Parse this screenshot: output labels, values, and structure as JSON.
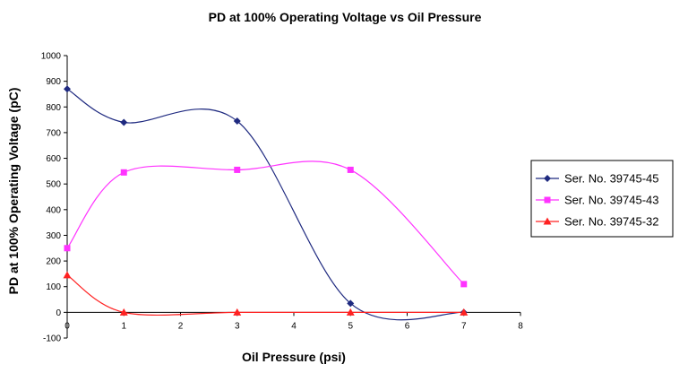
{
  "chart_data": {
    "type": "line",
    "title": "PD at 100% Operating Voltage vs Oil Pressure",
    "xlabel": "Oil Pressure (psi)",
    "ylabel": "PD at 100% Operating Voltage (pC)",
    "xlim": [
      0,
      8
    ],
    "ylim": [
      -100,
      1000
    ],
    "x_ticks": [
      0,
      1,
      2,
      3,
      4,
      5,
      6,
      7,
      8
    ],
    "y_ticks": [
      -100,
      0,
      100,
      200,
      300,
      400,
      500,
      600,
      700,
      800,
      900,
      1000
    ],
    "x_tick_labels": [
      "0",
      "1",
      "2",
      "3",
      "4",
      "5",
      "6",
      "7",
      "8"
    ],
    "y_tick_labels": [
      "-100",
      "0",
      "100",
      "200",
      "300",
      "400",
      "500",
      "600",
      "700",
      "800",
      "900",
      "1000"
    ],
    "smooth": true,
    "legend_position": "right",
    "series": [
      {
        "name": "Ser. No. 39745-45",
        "color": "#1f2a80",
        "marker": "diamond",
        "x": [
          0,
          1,
          3,
          5,
          7
        ],
        "values": [
          870,
          740,
          745,
          35,
          0
        ]
      },
      {
        "name": "Ser. No. 39745-43",
        "color": "#ff33ff",
        "marker": "square",
        "x": [
          0,
          1,
          3,
          5,
          7
        ],
        "values": [
          250,
          545,
          555,
          555,
          110
        ]
      },
      {
        "name": "Ser. No. 39745-32",
        "color": "#ff2222",
        "marker": "triangle",
        "x": [
          0,
          1,
          3,
          5,
          7
        ],
        "values": [
          145,
          0,
          0,
          0,
          0
        ]
      }
    ]
  }
}
